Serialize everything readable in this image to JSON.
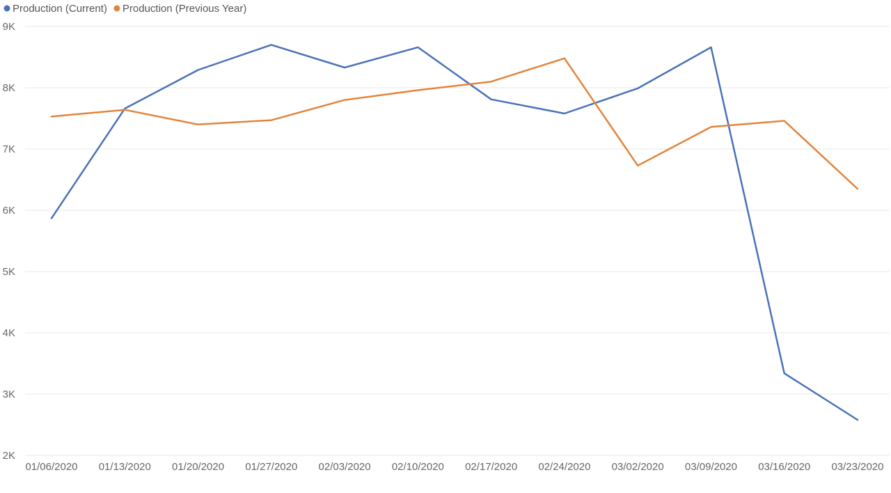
{
  "chart_data": {
    "type": "line",
    "title": "",
    "xlabel": "",
    "ylabel": "",
    "categories": [
      "01/06/2020",
      "01/13/2020",
      "01/20/2020",
      "01/27/2020",
      "02/03/2020",
      "02/10/2020",
      "02/17/2020",
      "02/24/2020",
      "03/02/2020",
      "03/09/2020",
      "03/16/2020",
      "03/23/2020"
    ],
    "ylim": [
      2000,
      9000
    ],
    "yticks": [
      {
        "value": 2000,
        "label": "2K"
      },
      {
        "value": 3000,
        "label": "3K"
      },
      {
        "value": 4000,
        "label": "4K"
      },
      {
        "value": 5000,
        "label": "5K"
      },
      {
        "value": 6000,
        "label": "6K"
      },
      {
        "value": 7000,
        "label": "7K"
      },
      {
        "value": 8000,
        "label": "8K"
      },
      {
        "value": 9000,
        "label": "9K"
      }
    ],
    "grid": true,
    "legend_position": "top-left",
    "series": [
      {
        "name": "Production (Current)",
        "color": "#4A72B8",
        "values": [
          5870,
          7660,
          8290,
          8700,
          8330,
          8660,
          7810,
          7580,
          7990,
          8660,
          3340,
          2580
        ]
      },
      {
        "name": "Production (Previous Year)",
        "color": "#E2843C",
        "values": [
          7530,
          7640,
          7400,
          7470,
          7800,
          7960,
          8100,
          8480,
          6730,
          7360,
          7460,
          6350
        ]
      }
    ]
  }
}
